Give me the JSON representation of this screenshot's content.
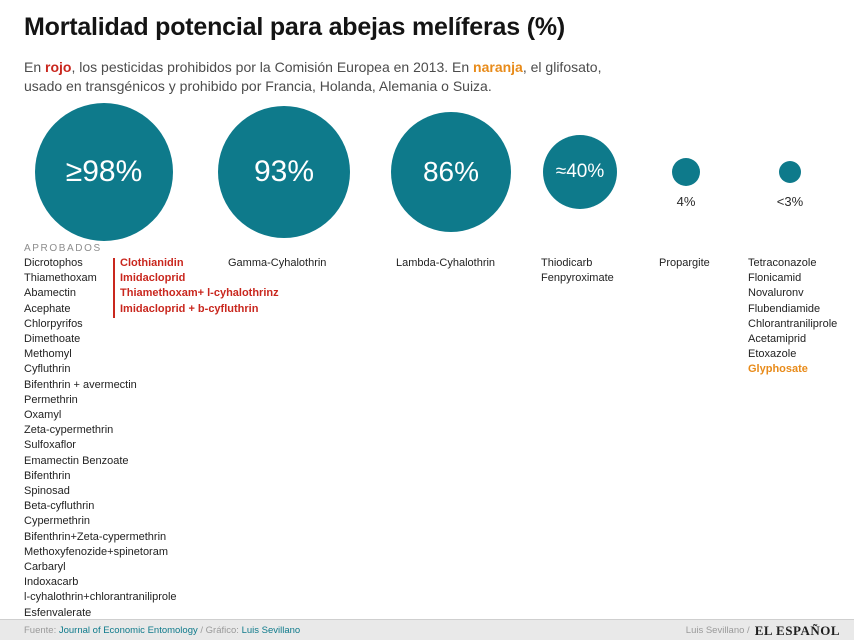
{
  "header": {
    "title": "Mortalidad potencial para abejas melíferas (%)",
    "subtitle": {
      "part1": "En ",
      "red_word": "rojo",
      "part2": ", los pesticidas prohibidos por la Comisión Europea en 2013. En ",
      "orange_word": "naranja",
      "part3": ", el glifosato,",
      "part4": "usado en transgénicos y prohibido por Francia, Holanda, Alemania o Suiza."
    }
  },
  "colors": {
    "teal": "#0e7a8b",
    "red": "#c9271e",
    "orange": "#e88b1a"
  },
  "chart_data": {
    "type": "scatter",
    "variant": "proportional-area-bubbles",
    "title": "Mortalidad potencial para abejas melíferas (%)",
    "unit": "%",
    "legend": {
      "red": "Pesticidas prohibidos por la Comisión Europea en 2013",
      "orange": "Glifosato, usado en transgénicos y prohibido por Francia, Holanda, Alemania o Suiza"
    },
    "groups": [
      {
        "mortality_label": "≥98%",
        "mortality_value": 98,
        "approved_header": "APROBADOS",
        "approved": [
          "Dicrotophos",
          "Thiamethoxam",
          "Abamectin",
          "Acephate",
          "Chlorpyrifos",
          "Dimethoate",
          "Methomyl",
          "Cyfluthrin",
          "Bifenthrin + avermectin",
          "Permethrin",
          "Oxamyl",
          "Zeta-cypermethrin",
          "Sulfoxaflor",
          "Emamectin Benzoate",
          "Bifenthrin",
          "Spinosad",
          "Beta-cyfluthrin",
          "Cypermethrin",
          "Bifenthrin+Zeta-cypermethrin",
          "Methoxyfenozide+spinetoram",
          "Carbaryl",
          "Indoxacarb",
          "l-cyhalothrin+chlorantraniliprole",
          "Esfenvalerate"
        ],
        "banned_eu_2013": [
          "Clothianidin",
          "Imidacloprid",
          "Thiamethoxam+ l-cyhalothrinz",
          "Imidacloprid + b-cyfluthrin"
        ]
      },
      {
        "mortality_label": "93%",
        "mortality_value": 93,
        "pesticides": [
          "Gamma-Cyhalothrin"
        ]
      },
      {
        "mortality_label": "86%",
        "mortality_value": 86,
        "pesticides": [
          "Lambda-Cyhalothrin"
        ]
      },
      {
        "mortality_label": "≈40%",
        "mortality_value": 40,
        "pesticides": [
          "Thiodicarb",
          "Fenpyroximate"
        ]
      },
      {
        "mortality_label": "4%",
        "mortality_value": 4,
        "pesticides": [
          "Propargite"
        ]
      },
      {
        "mortality_label": "<3%",
        "mortality_value": 3,
        "pesticides": [
          "Tetraconazole",
          "Flonicamid",
          "Novaluronv",
          "Flubendiamide",
          "Chlorantraniliprole",
          "Acetamiprid",
          "Etoxazole",
          {
            "label": "Glyphosate",
            "highlight": "orange"
          }
        ]
      }
    ]
  },
  "footer": {
    "source_label": "Fuente: ",
    "source_name": "Journal of Economic Entomology",
    "credit_label": " / Gráfico: ",
    "credit_name": "Luis Sevillano",
    "right_credit": "Luis Sevillano /",
    "brand": "EL ESPAÑOL"
  }
}
